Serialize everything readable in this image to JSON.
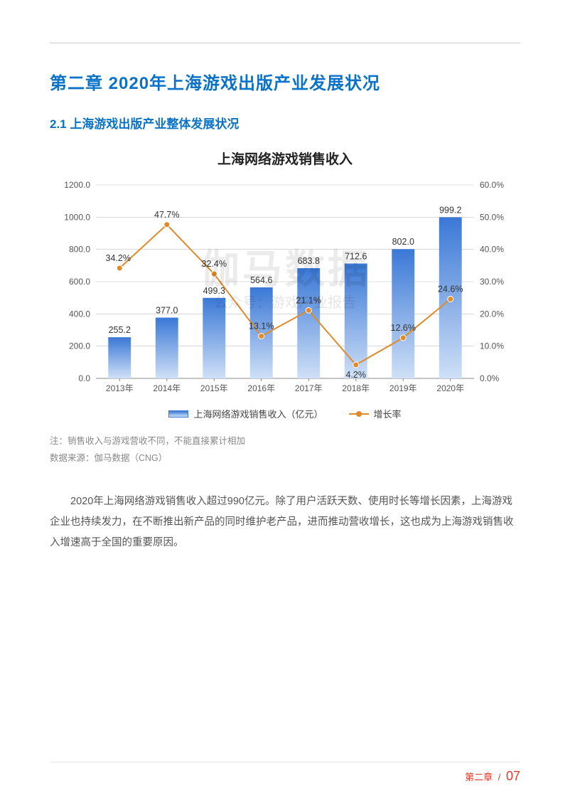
{
  "chapter_title": "第二章 2020年上海游戏出版产业发展状况",
  "section_title": "2.1 上海游戏出版产业整体发展状况",
  "chart": {
    "type": "bar+line",
    "title": "上海网络游戏销售收入",
    "categories": [
      "2013年",
      "2014年",
      "2015年",
      "2016年",
      "2017年",
      "2018年",
      "2019年",
      "2020年"
    ],
    "bar_values": [
      255.2,
      377.0,
      499.3,
      564.6,
      683.8,
      712.6,
      802.0,
      999.2
    ],
    "line_values_pct": [
      34.2,
      47.7,
      32.4,
      13.1,
      21.1,
      4.2,
      12.6,
      24.6
    ],
    "y_left": {
      "min": 0,
      "max": 1200,
      "step": 200,
      "labels": [
        "0.0",
        "200.0",
        "400.0",
        "600.0",
        "800.0",
        "1000.0",
        "1200.0"
      ]
    },
    "y_right": {
      "min": 0,
      "max": 60,
      "step": 10,
      "labels": [
        "0.0%",
        "10.0%",
        "20.0%",
        "30.0%",
        "40.0%",
        "50.0%",
        "60.0%"
      ]
    },
    "bar_color_top": "#3a78d6",
    "bar_color_bottom": "#cfe0f7",
    "line_color": "#e08a2a",
    "marker_color": "#e08a2a",
    "grid_color": "#bfbfbf",
    "bar_width_ratio": 0.48,
    "legend": {
      "bar_label": "上海网络游戏销售收入（亿元）",
      "line_label": "增长率"
    },
    "watermark_big": "伽马数据",
    "watermark_small": "公众号：游戏产业报告"
  },
  "notes_line1": "注：销售收入与游戏营收不同，不能直接累计相加",
  "notes_line2": "数据来源：伽马数据（CNG）",
  "body_paragraph": "2020年上海网络游戏销售收入超过990亿元。除了用户活跃天数、使用时长等增长因素，上海游戏企业也持续发力，在不断推出新产品的同时维护老产品，进而推动营收增长，这也成为上海游戏销售收入增速高于全国的重要原因。",
  "footer_chapter": "第二章",
  "footer_page": "07"
}
